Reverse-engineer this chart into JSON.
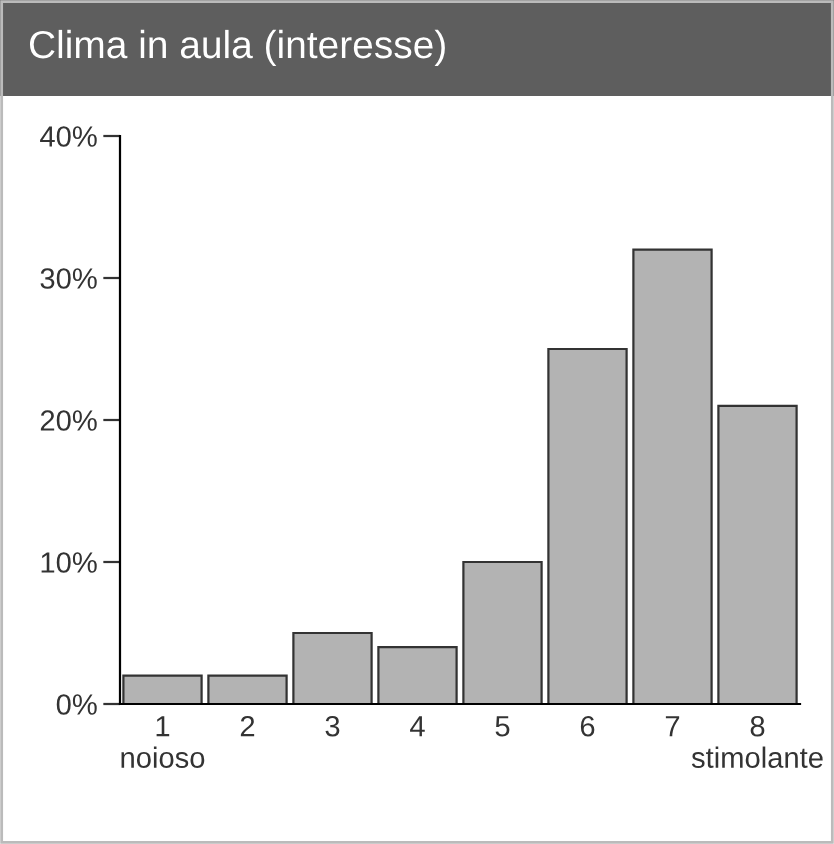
{
  "chart_data": {
    "type": "bar",
    "title": "Clima in aula (interesse)",
    "categories": [
      "1\nnoioso",
      "2",
      "3",
      "4",
      "5",
      "6",
      "7",
      "8\nstimolante"
    ],
    "values": [
      2,
      2,
      5,
      4,
      10,
      25,
      32,
      21
    ],
    "color": "#b3b3b3",
    "ylim": [
      0,
      40
    ],
    "yticks": [
      {
        "value": 0,
        "label": "0%"
      },
      {
        "value": 10,
        "label": "10%"
      },
      {
        "value": 20,
        "label": "20%"
      },
      {
        "value": 30,
        "label": "30%"
      },
      {
        "value": 40,
        "label": "40%"
      }
    ],
    "grid": false,
    "legend": false
  }
}
